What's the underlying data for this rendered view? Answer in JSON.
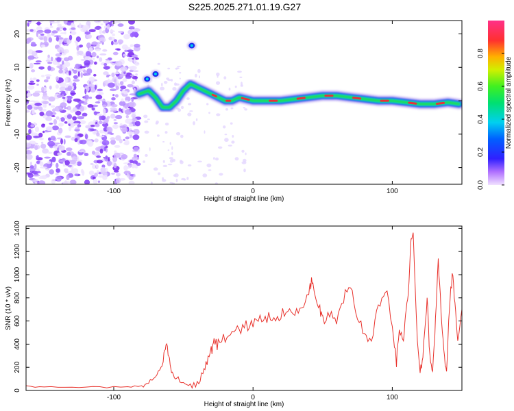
{
  "page": {
    "title": "S225.2025.271.01.19.G27"
  },
  "colors": {
    "snr_line": "#e8302a",
    "ridge_outer": "#b69cf0",
    "ridge_mid": "#1a2cf0",
    "ridge_inner": "#00d2e8",
    "ridge_core": "#22dd44",
    "ridge_peak": "#e8303a",
    "noise": "#7a2af0"
  },
  "chart_data": [
    {
      "id": "spectrogram",
      "type": "heatmap",
      "title": "S225.2025.271.01.19.G27",
      "xlabel": "Height of straight line (km)",
      "ylabel": "Frequency (Hz)",
      "xlim": [
        -163,
        150
      ],
      "ylim": [
        -25,
        24
      ],
      "x_ticks": [
        -100,
        0,
        100
      ],
      "y_ticks": [
        -20,
        -10,
        0,
        10,
        20
      ],
      "colorbar": {
        "label": "Normalized spectral amplitude",
        "range": [
          0,
          1
        ],
        "ticks": [
          0.0,
          0.2,
          0.4,
          0.6,
          0.8
        ]
      },
      "noise_region_x": [
        -163,
        -82
      ],
      "ridge": {
        "x": [
          -82,
          -75,
          -70,
          -65,
          -60,
          -55,
          -50,
          -45,
          -40,
          -35,
          -30,
          -25,
          -20,
          -15,
          -10,
          0,
          10,
          20,
          30,
          40,
          50,
          60,
          70,
          80,
          90,
          100,
          110,
          120,
          130,
          140,
          148
        ],
        "frequency": [
          2,
          3,
          1,
          -2,
          -2,
          0,
          3,
          5,
          4,
          3,
          2,
          1,
          0,
          0,
          1,
          0,
          0,
          0,
          0.5,
          1,
          1.5,
          1.5,
          1,
          0.5,
          0,
          0,
          -0.5,
          -1,
          -1,
          -0.5,
          -1
        ]
      },
      "isolated_blobs": [
        {
          "x": -44,
          "frequency": 16.5
        },
        {
          "x": -70,
          "frequency": 8
        },
        {
          "x": -76,
          "frequency": 6.5
        }
      ]
    },
    {
      "id": "snr",
      "type": "line",
      "xlabel": "Height of straight line (km)",
      "ylabel": "SNR (10 * v/v)",
      "xlim": [
        -163,
        150
      ],
      "ylim": [
        0,
        1420
      ],
      "x_ticks": [
        -100,
        0,
        100
      ],
      "y_ticks": [
        0,
        200,
        400,
        600,
        800,
        1000,
        1200,
        1400
      ],
      "series": [
        {
          "name": "SNR",
          "x": [
            -163,
            -150,
            -130,
            -110,
            -90,
            -80,
            -75,
            -70,
            -66,
            -64,
            -62,
            -60,
            -58,
            -55,
            -50,
            -45,
            -40,
            -36,
            -33,
            -30,
            -28,
            -25,
            -20,
            -15,
            -10,
            -5,
            0,
            5,
            10,
            15,
            20,
            25,
            30,
            35,
            40,
            42,
            44,
            48,
            50,
            55,
            60,
            65,
            70,
            75,
            80,
            85,
            90,
            95,
            100,
            103,
            105,
            108,
            110,
            112,
            113,
            115,
            117,
            119,
            121,
            123,
            125,
            127,
            129,
            131,
            133,
            135,
            137,
            139,
            141,
            143,
            145,
            147,
            150
          ],
          "values": [
            35,
            30,
            30,
            28,
            30,
            40,
            80,
            120,
            200,
            300,
            400,
            250,
            150,
            100,
            60,
            40,
            60,
            150,
            250,
            350,
            400,
            400,
            450,
            500,
            520,
            560,
            580,
            600,
            620,
            650,
            650,
            700,
            700,
            720,
            800,
            950,
            900,
            700,
            600,
            650,
            580,
            800,
            920,
            600,
            500,
            450,
            700,
            900,
            600,
            250,
            500,
            400,
            700,
            900,
            1250,
            1400,
            700,
            250,
            150,
            500,
            800,
            300,
            150,
            600,
            1100,
            700,
            300,
            150,
            700,
            1000,
            800,
            400,
            700
          ]
        }
      ]
    }
  ]
}
